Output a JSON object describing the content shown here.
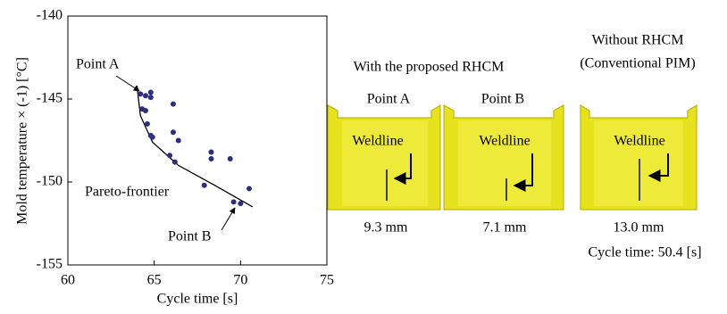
{
  "chart_data": {
    "type": "scatter",
    "x_label": "Cycle time [s]",
    "y_label": "Mold temperature × (-1) [°C]",
    "x": [
      64.2,
      64.5,
      64.8,
      64.8,
      64.3,
      64.5,
      64.6,
      64.8,
      64.9,
      66.1,
      66.1,
      66.4,
      65.9,
      66.2,
      68.3,
      68.3,
      69.4,
      67.9,
      69.6,
      70.0,
      70.5
    ],
    "values": [
      -144.7,
      -144.8,
      -144.6,
      -144.9,
      -145.6,
      -145.7,
      -146.5,
      -147.2,
      -147.3,
      -145.3,
      -147.0,
      -147.5,
      -148.4,
      -148.8,
      -148.2,
      -148.6,
      -148.6,
      -150.2,
      -151.2,
      -151.3,
      -150.4
    ],
    "color": "#2e2e80",
    "frontier": {
      "label": "Pareto-frontier",
      "x": [
        64.0,
        64.2,
        64.9,
        66.4,
        68.5,
        70.7
      ],
      "y": [
        -144.2,
        -146.0,
        -147.6,
        -149.0,
        -150.2,
        -151.5
      ]
    },
    "annotations": [
      "Point A",
      "Point B"
    ],
    "xlim": [
      60,
      75
    ],
    "xticks": [
      60,
      65,
      70,
      75
    ],
    "ylim": [
      -155,
      -140
    ],
    "yticks": [
      -155,
      -150,
      -145,
      -140
    ]
  },
  "panels": {
    "group_title": "With the proposed RHCM",
    "items": [
      {
        "title": "Point A",
        "label": "Weldline",
        "length": "9.3 mm"
      },
      {
        "title": "Point B",
        "label": "Weldline",
        "length": "7.1 mm"
      },
      {
        "title": "Without RHCM",
        "subtitle": "(Conventional PIM)",
        "label": "Weldline",
        "length": "13.0 mm",
        "note": "Cycle time: 50.4 [s]"
      }
    ]
  }
}
